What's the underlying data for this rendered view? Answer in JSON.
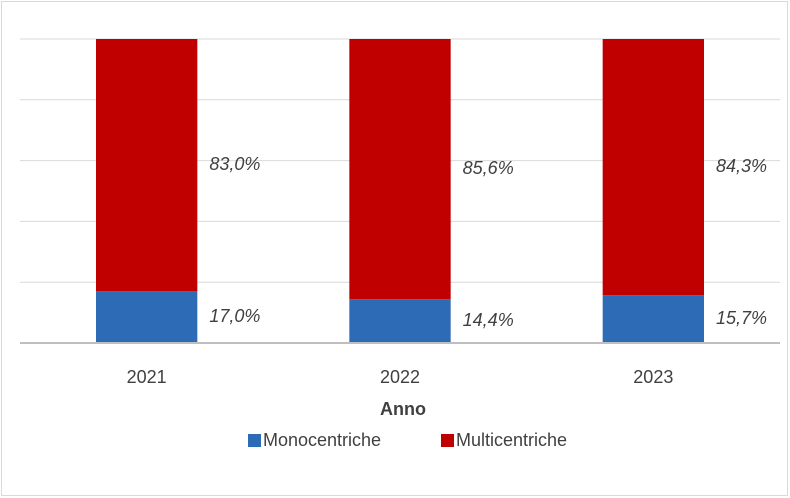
{
  "chart_data": {
    "type": "stacked_bar",
    "categories": [
      "2021",
      "2022",
      "2023"
    ],
    "x_label": "Anno",
    "series": [
      {
        "name": "Monocentriche",
        "color": "#2e6bb6",
        "values": [
          17.0,
          14.4,
          15.7
        ],
        "value_labels": [
          "17,0%",
          "14,4%",
          "15,7%"
        ]
      },
      {
        "name": "Multicentriche",
        "color": "#c00000",
        "values": [
          83.0,
          85.6,
          84.3
        ],
        "value_labels": [
          "83,0%",
          "85,6%",
          "84,3%"
        ]
      }
    ],
    "ylim": [
      0,
      100
    ],
    "yticks": [
      0,
      20,
      40,
      60,
      80,
      100
    ],
    "grid": true,
    "legend": "bottom"
  }
}
